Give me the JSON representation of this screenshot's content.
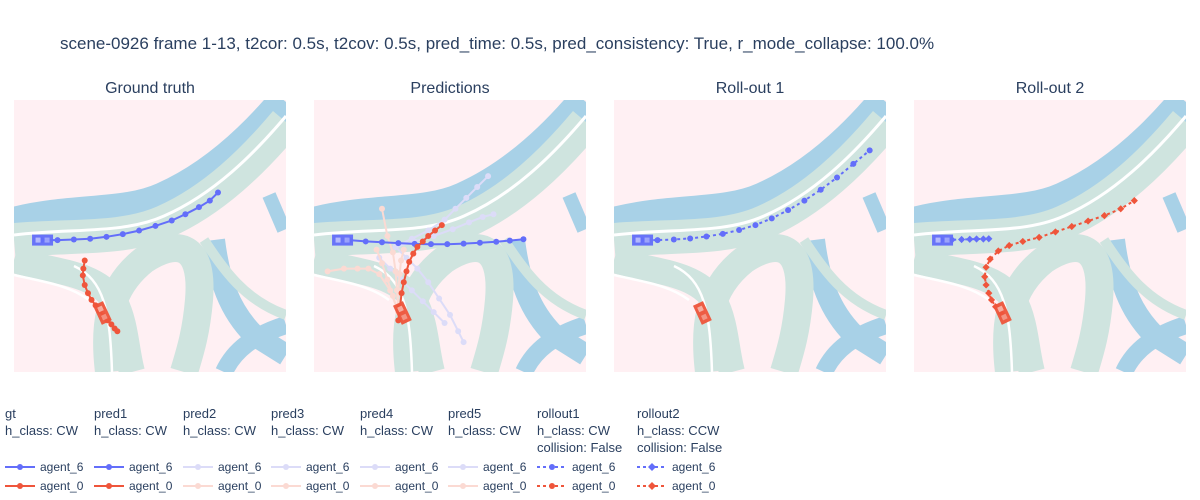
{
  "title": "scene-0926 frame 1-13, t2cor: 0.5s, t2cov: 0.5s, pred_time: 0.5s, pred_consistency: True, r_mode_collapse: 100.0%",
  "colors": {
    "background": "#fff0f3",
    "lane": "#cfe4df",
    "walkway": "#a8d1e7",
    "agent_6": "#636efa",
    "agent_0": "#ef553b",
    "pred_faded_6": "#dcdcf8",
    "pred_faded_0": "#fbdad3"
  },
  "panels": [
    {
      "title": "Ground truth"
    },
    {
      "title": "Predictions"
    },
    {
      "title": "Roll-out 1"
    },
    {
      "title": "Roll-out 2"
    }
  ],
  "legend": [
    {
      "group": "gt",
      "lines": [
        "gt",
        "h_class: CW"
      ],
      "style": "solid",
      "marker": "circle",
      "faded": false,
      "entries": [
        "agent_6",
        "agent_0"
      ]
    },
    {
      "group": "pred1",
      "lines": [
        "pred1",
        "h_class: CW"
      ],
      "style": "solid",
      "marker": "circle",
      "faded": false,
      "entries": [
        "agent_6",
        "agent_0"
      ]
    },
    {
      "group": "pred2",
      "lines": [
        "pred2",
        "h_class: CW"
      ],
      "style": "solid",
      "marker": "circle",
      "faded": true,
      "entries": [
        "agent_6",
        "agent_0"
      ]
    },
    {
      "group": "pred3",
      "lines": [
        "pred3",
        "h_class: CW"
      ],
      "style": "solid",
      "marker": "circle",
      "faded": true,
      "entries": [
        "agent_6",
        "agent_0"
      ]
    },
    {
      "group": "pred4",
      "lines": [
        "pred4",
        "h_class: CW"
      ],
      "style": "solid",
      "marker": "circle",
      "faded": true,
      "entries": [
        "agent_6",
        "agent_0"
      ]
    },
    {
      "group": "pred5",
      "lines": [
        "pred5",
        "h_class: CW"
      ],
      "style": "solid",
      "marker": "circle",
      "faded": true,
      "entries": [
        "agent_6",
        "agent_0"
      ]
    },
    {
      "group": "rollout1",
      "lines": [
        "rollout1",
        "h_class: CW",
        "collision: False"
      ],
      "style": "dotted",
      "marker": "circle",
      "faded": false,
      "entries": [
        "agent_6",
        "agent_0"
      ]
    },
    {
      "group": "rollout2",
      "lines": [
        "rollout2",
        "h_class: CCW",
        "collision: False"
      ],
      "style": "dotted",
      "marker": "diamond",
      "faded": false,
      "entries": [
        "agent_6",
        "agent_0"
      ]
    }
  ],
  "chart_data": [
    {
      "type": "scatter",
      "title": "Ground truth",
      "xlim": [
        0,
        100
      ],
      "ylim": [
        0,
        100
      ],
      "series": [
        {
          "name": "agent_6",
          "x": [
            10,
            16,
            22,
            28,
            34,
            40,
            46,
            52,
            58,
            63,
            68,
            72,
            75
          ],
          "y": [
            48.5,
            48.5,
            48.7,
            49,
            49.7,
            50.7,
            52,
            53.7,
            55.7,
            58,
            60.6,
            63,
            66
          ]
        },
        {
          "name": "agent_0",
          "x": [
            26,
            25.5,
            25.3,
            26,
            27.2,
            28.5,
            30,
            31.5,
            33,
            34.5,
            35.8,
            37,
            38
          ],
          "y": [
            41,
            38,
            35.5,
            32,
            29,
            26.5,
            24.5,
            22.5,
            20.5,
            19,
            17.5,
            16,
            15
          ]
        }
      ],
      "vehicles": [
        {
          "agent": "agent_6",
          "x": 10.5,
          "y": 48.5,
          "heading_deg": 0
        },
        {
          "agent": "agent_0",
          "x": 32.5,
          "y": 21.7,
          "heading_deg": -65
        }
      ]
    },
    {
      "type": "scatter",
      "title": "Predictions",
      "xlim": [
        0,
        100
      ],
      "ylim": [
        0,
        100
      ],
      "series": [
        {
          "name": "agent_6",
          "prediction": "pred1",
          "x": [
            13,
            19,
            25,
            31,
            37,
            43,
            49,
            55,
            61,
            67,
            72,
            77
          ],
          "y": [
            48.5,
            48,
            47.7,
            47.4,
            47.1,
            47,
            47,
            47.2,
            47.5,
            47.9,
            48.3,
            48.8
          ]
        },
        {
          "name": "agent_0",
          "prediction": "pred1",
          "x": [
            31,
            31.6,
            32.2,
            33,
            34,
            35,
            36.5,
            38,
            40,
            42,
            44.5,
            47
          ],
          "y": [
            19,
            24,
            29,
            33,
            37,
            40.5,
            43.5,
            46,
            48,
            50,
            52,
            54
          ]
        },
        {
          "name": "agent_6",
          "prediction": "pred2",
          "x": [
            30,
            37,
            44,
            51,
            57,
            62,
            66
          ],
          "y": [
            46,
            48,
            50,
            52.5,
            55,
            57,
            58
          ]
        },
        {
          "name": "agent_6",
          "prediction": "pred3",
          "x": [
            30,
            36,
            42,
            48,
            52,
            56,
            60,
            64
          ],
          "y": [
            46,
            49,
            52,
            56,
            60,
            64,
            68,
            72
          ]
        },
        {
          "name": "agent_6",
          "prediction": "pred4",
          "x": [
            30,
            34,
            38,
            42,
            46,
            50,
            53,
            55
          ],
          "y": [
            46,
            42,
            38,
            33,
            27,
            21,
            15,
            11
          ]
        },
        {
          "name": "agent_6",
          "prediction": "pred5",
          "x": [
            24,
            28,
            32,
            36,
            40,
            44,
            48
          ],
          "y": [
            42,
            38,
            34,
            30,
            26,
            22,
            18
          ]
        },
        {
          "name": "agent_0",
          "prediction": "pred2",
          "x": [
            31,
            28,
            24,
            20,
            16,
            11,
            5
          ],
          "y": [
            22,
            30,
            36,
            38,
            38,
            38,
            37
          ]
        },
        {
          "name": "agent_0",
          "prediction": "pred3",
          "x": [
            31,
            29,
            27,
            25,
            23
          ],
          "y": [
            22,
            28,
            34,
            40,
            45
          ]
        },
        {
          "name": "agent_0",
          "prediction": "pred4",
          "x": [
            31,
            30.5,
            30,
            29,
            27,
            25
          ],
          "y": [
            22,
            30,
            37,
            44,
            50,
            60
          ]
        },
        {
          "name": "agent_0",
          "prediction": "pred5",
          "x": [
            31,
            31,
            31.5,
            32,
            33
          ],
          "y": [
            22,
            30,
            36,
            41,
            45
          ]
        }
      ],
      "vehicles": [
        {
          "agent": "agent_6",
          "x": 10.5,
          "y": 48.5,
          "heading_deg": 0
        },
        {
          "agent": "agent_0",
          "x": 32.5,
          "y": 21.7,
          "heading_deg": -65
        }
      ]
    },
    {
      "type": "scatter",
      "title": "Roll-out 1",
      "xlim": [
        0,
        100
      ],
      "ylim": [
        0,
        100
      ],
      "series": [
        {
          "name": "agent_6",
          "rollout": "rollout1",
          "x": [
            10,
            16,
            22,
            28,
            34,
            40,
            46,
            52,
            58,
            64,
            70,
            76,
            82,
            88,
            94
          ],
          "y": [
            48.5,
            48.5,
            48.7,
            49.1,
            49.8,
            50.8,
            52.2,
            54,
            56.5,
            59.5,
            63,
            67,
            71.5,
            76.5,
            81.5
          ]
        }
      ],
      "vehicles": [
        {
          "agent": "agent_6",
          "x": 10.5,
          "y": 48.5,
          "heading_deg": 0
        },
        {
          "agent": "agent_0",
          "x": 32.5,
          "y": 21.7,
          "heading_deg": -65
        }
      ]
    },
    {
      "type": "scatter",
      "title": "Roll-out 2",
      "xlim": [
        0,
        100
      ],
      "ylim": [
        0,
        100
      ],
      "series": [
        {
          "name": "agent_6",
          "rollout": "rollout2",
          "x": [
            10,
            14,
            17.5,
            20.5,
            23,
            25.5,
            27.5
          ],
          "y": [
            48.5,
            48.6,
            48.7,
            48.8,
            48.9,
            48.9,
            49
          ]
        },
        {
          "name": "agent_0",
          "rollout": "rollout2",
          "x": [
            32,
            30,
            28.5,
            27.5,
            26.5,
            26,
            26.5,
            28,
            31,
            35,
            40,
            46,
            52,
            58,
            64,
            70,
            76,
            81
          ],
          "y": [
            21.5,
            24,
            26.5,
            29,
            32,
            35,
            38.5,
            41.5,
            44.5,
            46.5,
            48,
            49.5,
            51.5,
            53.5,
            55.5,
            57.5,
            60,
            63
          ]
        }
      ],
      "vehicles": [
        {
          "agent": "agent_6",
          "x": 10.5,
          "y": 48.5,
          "heading_deg": 0
        },
        {
          "agent": "agent_0",
          "x": 32.5,
          "y": 21.7,
          "heading_deg": -65
        }
      ]
    }
  ]
}
